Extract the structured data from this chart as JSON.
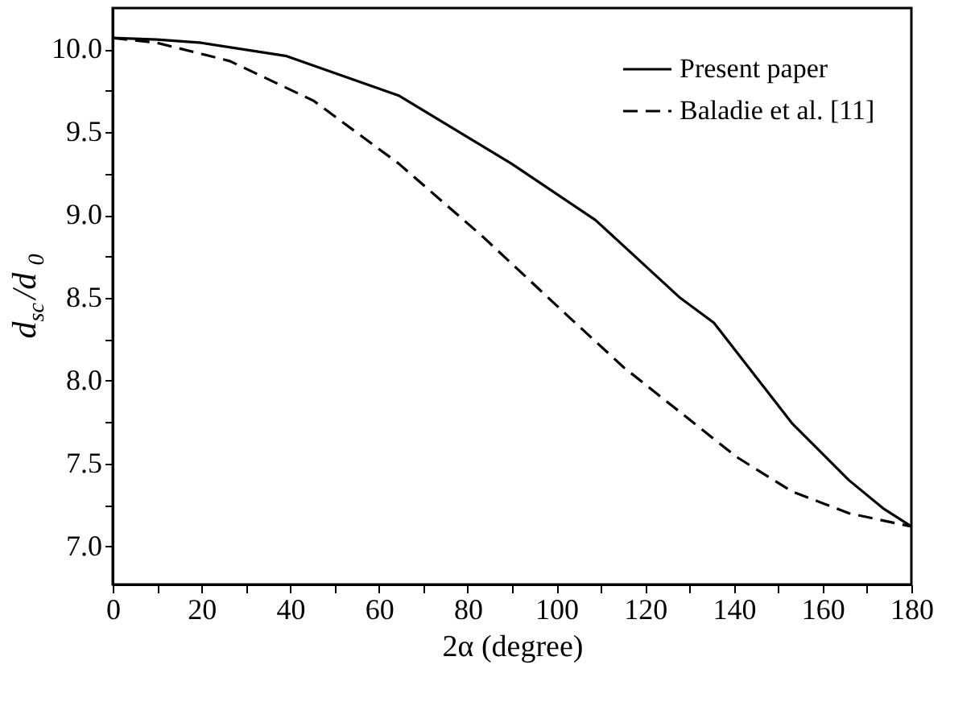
{
  "chart_data": {
    "type": "line",
    "xlabel": "2α  (degree)",
    "ylabel": "d$_{sc}$/d$_{0}$",
    "xlim": [
      0,
      180
    ],
    "ylim": [
      6.77,
      10.25
    ],
    "xticks": [
      0,
      {
        "value": 10,
        "label": null
      },
      20,
      {
        "value": 30,
        "label": null
      },
      40,
      {
        "value": 50,
        "label": null
      },
      60,
      {
        "value": 70,
        "label": null
      },
      80,
      {
        "value": 90,
        "label": null
      },
      100,
      {
        "value": 110,
        "label": null
      },
      120,
      {
        "value": 130,
        "label": null
      },
      140,
      {
        "value": 150,
        "label": null
      },
      160,
      {
        "value": 170,
        "label": null
      },
      180
    ],
    "yticks": [
      {
        "value": 7,
        "label": "7.0"
      },
      {
        "value": 7.25,
        "label": null
      },
      7.5,
      {
        "value": 7.75,
        "label": null
      },
      {
        "value": 8,
        "label": "8.0"
      },
      {
        "value": 8.25,
        "label": null
      },
      8.5,
      {
        "value": 8.75,
        "label": null
      },
      {
        "value": 9,
        "label": "9.0"
      },
      {
        "value": 9.25,
        "label": null
      },
      9.5,
      {
        "value": 9.75,
        "label": null
      },
      {
        "value": 10,
        "label": "10.0"
      }
    ],
    "grid": false,
    "legend": "top right",
    "marker": "none",
    "series": [
      {
        "name": "Present paper",
        "color": "#000000",
        "line_style": "solid",
        "x": [
          0,
          10,
          20,
          39.2,
          64.6,
          89.9,
          108.8,
          127.9,
          135.5,
          153.2,
          165.9,
          173.6,
          180
        ],
        "values": [
          10.07,
          10.06,
          10.04,
          9.96,
          9.72,
          9.31,
          8.97,
          8.5,
          8.35,
          7.74,
          7.4,
          7.23,
          7.12
        ]
      },
      {
        "name": "Baladie et al. [11]",
        "color": "#000000",
        "line_style": "dashed",
        "x": [
          0,
          10,
          26.4,
          45.3,
          64.5,
          83.4,
          102.6,
          115.2,
          127.9,
          140.6,
          153.2,
          165.9,
          180
        ],
        "values": [
          10.07,
          10.04,
          9.93,
          9.69,
          9.31,
          8.87,
          8.39,
          8.08,
          7.81,
          7.54,
          7.33,
          7.2,
          7.12
        ]
      }
    ]
  }
}
